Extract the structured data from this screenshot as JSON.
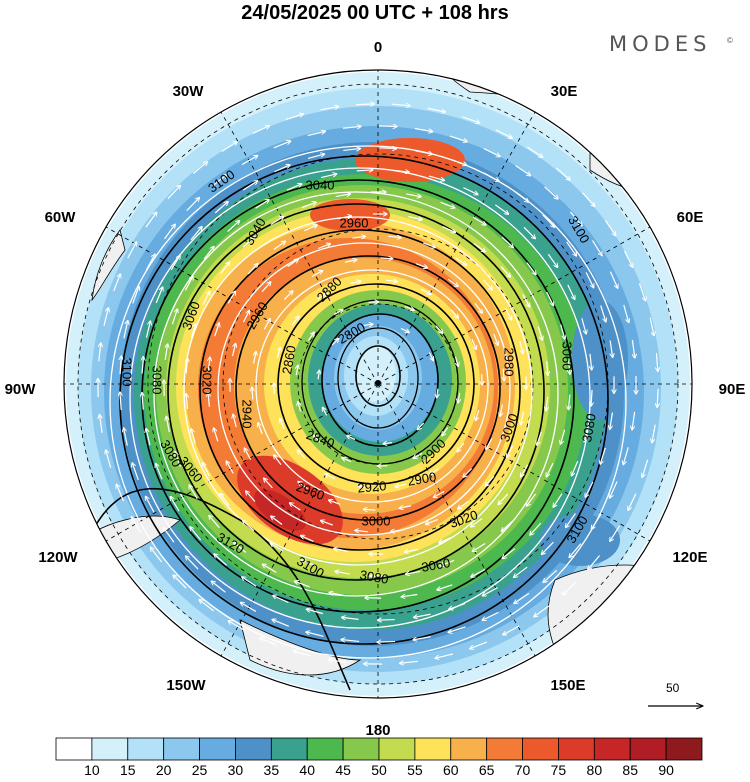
{
  "header": {
    "title": "24/05/2025  00 UTC  + 108 hrs",
    "brand": "MODES",
    "brand_mark": "©"
  },
  "map": {
    "projection": "south-polar-stereographic",
    "longitude_labels": [
      "0",
      "30E",
      "60E",
      "90E",
      "120E",
      "150E",
      "180",
      "150W",
      "120W",
      "90W",
      "60W",
      "30W"
    ],
    "fill_variable_colors": [
      "#ffffff",
      "#d4f0fb",
      "#b3e2f8",
      "#8cc8ee",
      "#66ace0",
      "#4e91c8",
      "#3aa18f",
      "#4db84e",
      "#86c84b",
      "#c3dc4f",
      "#fde25a",
      "#f8b14a",
      "#f37b35",
      "#ec5a2c",
      "#dc3b2a",
      "#c62626",
      "#b01d24",
      "#8f1a1d"
    ],
    "land_color": "#f0f0f0",
    "contour_levels": [
      "2800",
      "2840",
      "2860",
      "2880",
      "2900",
      "2920",
      "2940",
      "2960",
      "3000",
      "3020",
      "3040",
      "3060",
      "3080",
      "3100",
      "3120"
    ],
    "reference_vector_label": "50"
  },
  "colorbar": {
    "ticks": [
      "10",
      "15",
      "20",
      "25",
      "30",
      "35",
      "40",
      "45",
      "50",
      "55",
      "60",
      "65",
      "70",
      "75",
      "80",
      "85",
      "90"
    ]
  }
}
